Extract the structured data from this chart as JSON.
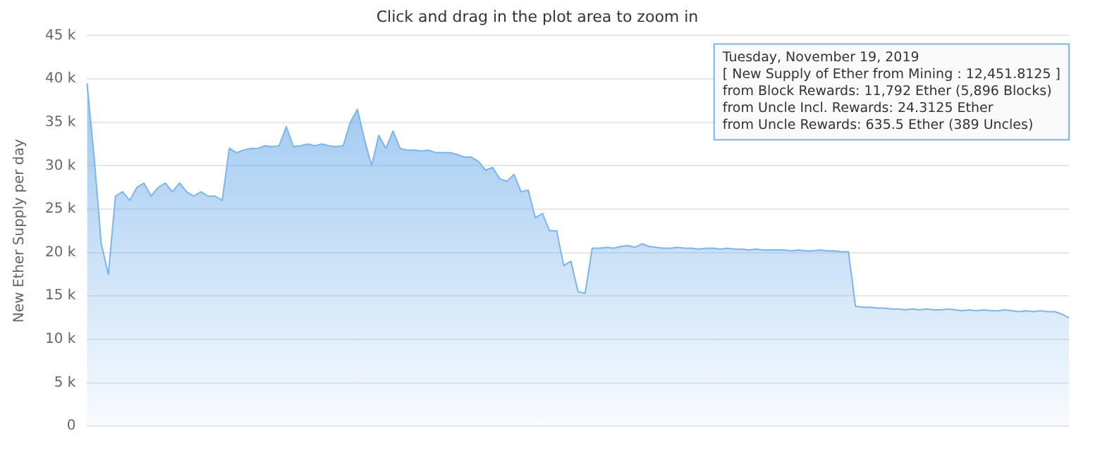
{
  "chart_data": {
    "type": "area",
    "subtitle": "Click and drag in the plot area to zoom in",
    "ylabel": "New Ether Supply per day",
    "categories": [
      null,
      null,
      null,
      null,
      null,
      null,
      null,
      null,
      null,
      null,
      null,
      null,
      null,
      null,
      null,
      null,
      null,
      null,
      null,
      null,
      null,
      null,
      null,
      null,
      null,
      null,
      null,
      null,
      null,
      null,
      null,
      null,
      null,
      null,
      null,
      null,
      null,
      null,
      null,
      null,
      null,
      null,
      null,
      null,
      null,
      null,
      null,
      null,
      null,
      null,
      null,
      null,
      null,
      null,
      null,
      null,
      null,
      null,
      null,
      null,
      null,
      null,
      null,
      null,
      null,
      null,
      null,
      null,
      null,
      null,
      null,
      null,
      null,
      null,
      null,
      null,
      null,
      null,
      null,
      null,
      null,
      null,
      null,
      null,
      null,
      null,
      null,
      null,
      null,
      null,
      null,
      null,
      null,
      null,
      null,
      null,
      null,
      null,
      null,
      null,
      null,
      null,
      null,
      null,
      null,
      null,
      null,
      null,
      null,
      null,
      null,
      null,
      null,
      null,
      null,
      null,
      null,
      null,
      null,
      null,
      null,
      null,
      null,
      null,
      null,
      null,
      null,
      null,
      null,
      null,
      null,
      null,
      null,
      null,
      null,
      null,
      null,
      null,
      null
    ],
    "series": [
      {
        "color": "#7cb5ec",
        "values": [
          39500,
          31000,
          21000,
          17500,
          26500,
          27000,
          26000,
          27500,
          28000,
          26500,
          27500,
          28000,
          27000,
          28000,
          27000,
          26500,
          27000,
          26500,
          26500,
          26000,
          32000,
          31500,
          31800,
          32000,
          32000,
          32300,
          32200,
          32300,
          34500,
          32200,
          32300,
          32500,
          32300,
          32500,
          32300,
          32200,
          32300,
          35000,
          36500,
          33000,
          30000,
          33500,
          32000,
          34000,
          32000,
          31800,
          31800,
          31700,
          31800,
          31500,
          31500,
          31500,
          31300,
          31000,
          31000,
          30500,
          29500,
          29800,
          28500,
          28200,
          29000,
          27000,
          27200,
          24000,
          24500,
          22500,
          22500,
          18500,
          19000,
          15500,
          15300,
          20500,
          20500,
          20600,
          20500,
          20700,
          20800,
          20600,
          21000,
          20700,
          20600,
          20500,
          20500,
          20600,
          20500,
          20500,
          20400,
          20500,
          20500,
          20400,
          20500,
          20400,
          20400,
          20300,
          20400,
          20300,
          20300,
          20300,
          20300,
          20200,
          20300,
          20200,
          20200,
          20300,
          20200,
          20200,
          20100,
          20100,
          13800,
          13700,
          13700,
          13600,
          13600,
          13500,
          13500,
          13400,
          13500,
          13400,
          13500,
          13400,
          13400,
          13500,
          13400,
          13300,
          13400,
          13300,
          13400,
          13300,
          13300,
          13400,
          13300,
          13200,
          13300,
          13200,
          13300,
          13200,
          13200,
          12900,
          12500
        ]
      }
    ],
    "ylim": [
      0,
      45000
    ],
    "yticks": [
      {
        "value": 0,
        "label": "0"
      },
      {
        "value": 5000,
        "label": "5 k"
      },
      {
        "value": 10000,
        "label": "10 k"
      },
      {
        "value": 15000,
        "label": "15 k"
      },
      {
        "value": 20000,
        "label": "20 k"
      },
      {
        "value": 25000,
        "label": "25 k"
      },
      {
        "value": 30000,
        "label": "30 k"
      },
      {
        "value": 35000,
        "label": "35 k"
      },
      {
        "value": 40000,
        "label": "40 k"
      },
      {
        "value": 45000,
        "label": "45 k"
      }
    ],
    "grid": "y",
    "marker": "none",
    "annotations": [
      "Tuesday, November 19, 2019\n[ New Supply of Ether from Mining : 12,451.8125 ]\nfrom Block Rewards: 11,792 Ether (5,896 Blocks)\nfrom Uncle Incl. Rewards: 24.3125 Ether\nfrom Uncle Rewards: 635.5 Ether (389 Uncles)"
    ]
  }
}
